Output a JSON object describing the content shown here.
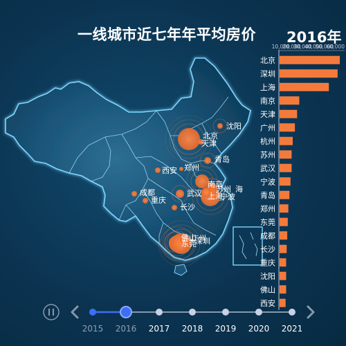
{
  "title": "一线城市近七年年平均房价",
  "current_year": "2016年",
  "timeline": {
    "years": [
      "2015",
      "2016",
      "2017",
      "2018",
      "2019",
      "2020",
      "2021"
    ],
    "active_index": 1
  },
  "colors": {
    "bar": "#f47a3c",
    "bubble": "#f47a3c",
    "timeline_done": "#3d6ff5",
    "timeline_todo": "#c9d0e6"
  },
  "map_labels": [
    "北京",
    "天津",
    "沈阳",
    "青岛",
    "郑州",
    "西安",
    "南京",
    "苏州",
    "上海",
    "成都",
    "重庆",
    "武汉",
    "宁波",
    "杭州",
    "长沙",
    "佛山",
    "广州",
    "深圳",
    "东莞",
    "海"
  ],
  "chart_data": {
    "type": "bar",
    "orientation": "horizontal",
    "categories": [
      "北京",
      "深圳",
      "上海",
      "南京",
      "天津",
      "广州",
      "杭州",
      "苏州",
      "武汉",
      "宁波",
      "青岛",
      "郑州",
      "东莞",
      "成都",
      "长沙",
      "重庆",
      "沈阳",
      "佛山",
      "西安"
    ],
    "values": [
      55000,
      53000,
      45000,
      18000,
      16000,
      14000,
      12000,
      11000,
      11000,
      10000,
      9000,
      8000,
      7500,
      7000,
      6500,
      6000,
      6000,
      6000,
      5500
    ],
    "xlim": [
      0,
      60000
    ],
    "x_tick_labels": [
      "10,000",
      "20,000",
      "30,000",
      "40,000",
      "50,000",
      "60,000"
    ]
  }
}
